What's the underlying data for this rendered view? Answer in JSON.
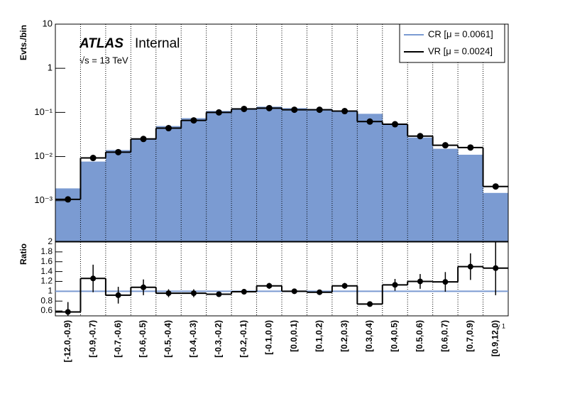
{
  "chart_data": {
    "type": "histogram_ratio",
    "title": "ATLAS",
    "subtitle": "Internal",
    "annotation": "√s = 13 TeV",
    "ylabel": "Evts./bin",
    "xlabel": "γ 1",
    "categories": [
      "[-12.0,-0.9)",
      "[-0.9,-0.7)",
      "[-0.7,-0.6)",
      "[-0.6,-0.5)",
      "[-0.5,-0.4)",
      "[-0.4,-0.3)",
      "[-0.3,-0.2)",
      "[-0.2,-0.1)",
      "[-0.1,0.0)",
      "[0.0,0.1)",
      "[0.1,0.2)",
      "[0.2,0.3)",
      "[0.3,0.4)",
      "[0.4,0.5)",
      "[0.5,0.6)",
      "[0.6,0.7)",
      "[0.7,0.9)",
      "[0.9,12.0)"
    ],
    "series": [
      {
        "name": "CR [μ = 0.0061]",
        "color": "#7b9bd2",
        "line_color": "#7b9bd2",
        "values": [
          0.0019,
          0.0077,
          0.014,
          0.026,
          0.049,
          0.074,
          0.108,
          0.125,
          0.135,
          0.125,
          0.12,
          0.11,
          0.093,
          0.054,
          0.027,
          0.015,
          0.011,
          0.0015
        ]
      },
      {
        "name": "VR [μ = 0.0024]",
        "color": "#000000",
        "values": [
          0.00107,
          0.0093,
          0.0126,
          0.025,
          0.044,
          0.066,
          0.1,
          0.12,
          0.125,
          0.115,
          0.115,
          0.107,
          0.062,
          0.054,
          0.029,
          0.018,
          0.016,
          0.0021
        ]
      }
    ],
    "log_y": true,
    "ylim": [
      0.00012,
      10
    ],
    "yticks": [
      {
        "value": 0.001,
        "label": "10⁻³"
      },
      {
        "value": 0.01,
        "label": "10⁻²"
      },
      {
        "value": 0.1,
        "label": "10⁻¹"
      },
      1,
      10
    ],
    "xgrid": true,
    "legend": "top-right",
    "ratio": {
      "ylabel": "Ratio",
      "reference": 1,
      "values": [
        0.58,
        1.26,
        0.92,
        1.08,
        0.96,
        0.96,
        0.94,
        0.99,
        1.11,
        1.0,
        0.98,
        1.11,
        0.74,
        1.13,
        1.2,
        1.19,
        1.5,
        1.47
      ],
      "errors": [
        0.2,
        0.28,
        0.17,
        0.16,
        0.08,
        0.08,
        0.05,
        0.05,
        0.06,
        0.05,
        0.05,
        0.06,
        0.05,
        0.12,
        0.15,
        0.2,
        0.27,
        0.55
      ],
      "ylim": [
        0.5,
        2
      ],
      "yticks": [
        0.6,
        0.8,
        1,
        1.2,
        1.4,
        1.6,
        1.8,
        2
      ]
    }
  }
}
